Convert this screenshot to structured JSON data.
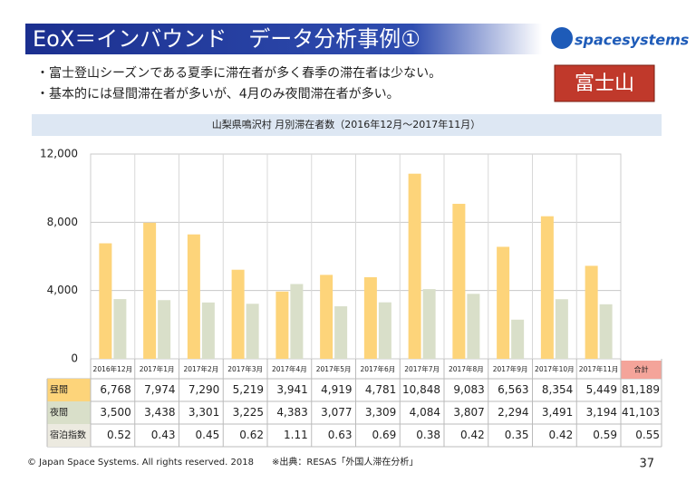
{
  "slide": {
    "title": "EoX＝インバウンド　データ分析事例①",
    "logo": "spacesystems",
    "bullets": [
      "・富士登山シーズンである夏季に滞在者が多く春季の滞在者は少ない。",
      "・基本的には昼間滞在者が多いが、4月のみ夜間滞在者が多い。"
    ],
    "badge": "富士山",
    "footer": "© Japan Space Systems. All rights reserved. 2018",
    "source": "※出典：RESAS「外国人滞在分析」",
    "page": "37"
  },
  "chart_data": {
    "type": "bar",
    "title": "山梨県鳴沢村 月別滞在者数（2016年12月～2017年11月）",
    "categories": [
      "2016年12月",
      "2017年1月",
      "2017年2月",
      "2017年3月",
      "2017年4月",
      "2017年5月",
      "2017年6月",
      "2017年7月",
      "2017年8月",
      "2017年9月",
      "2017年10月",
      "2017年11月"
    ],
    "series": [
      {
        "name": "昼間",
        "color": "#fdd47a",
        "values": [
          6768,
          7974,
          7290,
          5219,
          3941,
          4919,
          4781,
          10848,
          9083,
          6563,
          8354,
          5449
        ],
        "value_labels": [
          "6,768",
          "7,974",
          "7,290",
          "5,219",
          "3,941",
          "4,919",
          "4,781",
          "10,848",
          "9,083",
          "6,563",
          "8,354",
          "5,449"
        ],
        "total": 81189,
        "total_label": "81,189"
      },
      {
        "name": "夜間",
        "color": "#d9dfc9",
        "values": [
          3500,
          3438,
          3301,
          3225,
          4383,
          3077,
          3309,
          4084,
          3807,
          2294,
          3491,
          3194
        ],
        "value_labels": [
          "3,500",
          "3,438",
          "3,301",
          "3,225",
          "4,383",
          "3,077",
          "3,309",
          "4,084",
          "3,807",
          "2,294",
          "3,491",
          "3,194"
        ],
        "total": 41103,
        "total_label": "41,103"
      }
    ],
    "ratio": {
      "name": "宿泊指数",
      "values": [
        0.52,
        0.43,
        0.45,
        0.62,
        1.11,
        0.63,
        0.69,
        0.38,
        0.42,
        0.35,
        0.42,
        0.59
      ],
      "total": 0.55
    },
    "total_header": "合計",
    "ylim": [
      0,
      12000
    ],
    "yticks": [
      0,
      {
        "value": 4000,
        "label": "4,000"
      },
      {
        "value": 8000,
        "label": "8,000"
      },
      {
        "value": 12000,
        "label": "12,000"
      }
    ],
    "grid": true
  }
}
